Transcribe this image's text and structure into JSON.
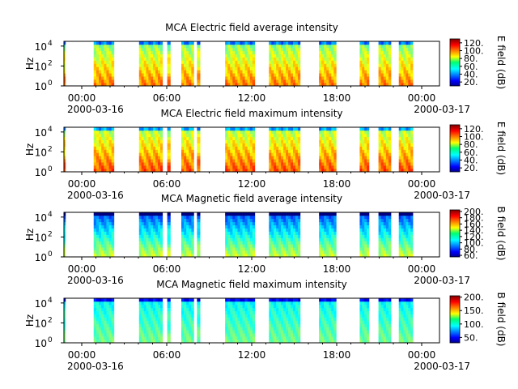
{
  "chart_data": [
    {
      "type": "heatmap",
      "title": "MCA  Electric field average intensity",
      "ylabel": "Hz",
      "x_ticks": [
        "00:00",
        "06:00",
        "12:00",
        "18:00",
        "00:00"
      ],
      "x_dates": [
        "2000-03-16",
        "2000-03-17"
      ],
      "y_ticks": [
        {
          "base": "10",
          "exp": "0"
        },
        {
          "base": "10",
          "exp": "2"
        },
        {
          "base": "10",
          "exp": "4"
        }
      ],
      "yscale": "log",
      "ylim": [
        1,
        30000
      ],
      "xlim": [
        "2000-03-16 00:00",
        "2000-03-17 00:00"
      ],
      "colorbar": {
        "label": "E field (dB)",
        "ticks": [
          "20.",
          "40.",
          "60.",
          "80.",
          "100.",
          "120."
        ],
        "range": [
          10,
          130
        ]
      },
      "data_windows_hours": [
        [
          0,
          0.1
        ],
        [
          1.9,
          3.2
        ],
        [
          4.8,
          6.3
        ],
        [
          6.6,
          6.8
        ],
        [
          7.5,
          8.3
        ],
        [
          8.5,
          8.7
        ],
        [
          10.3,
          12.2
        ],
        [
          13.1,
          15.1
        ],
        [
          16.3,
          17.4
        ],
        [
          18.9,
          19.5
        ],
        [
          20.1,
          20.9
        ],
        [
          21.4,
          22.3
        ]
      ],
      "low_band_intensity": 100,
      "high_band_intensity": 70
    },
    {
      "type": "heatmap",
      "title": "MCA  Electric field maximum intensity",
      "ylabel": "Hz",
      "x_ticks": [
        "00:00",
        "06:00",
        "12:00",
        "18:00",
        "00:00"
      ],
      "x_dates": [
        "2000-03-16",
        "2000-03-17"
      ],
      "y_ticks": [
        {
          "base": "10",
          "exp": "0"
        },
        {
          "base": "10",
          "exp": "2"
        },
        {
          "base": "10",
          "exp": "4"
        }
      ],
      "yscale": "log",
      "ylim": [
        1,
        30000
      ],
      "xlim": [
        "2000-03-16 00:00",
        "2000-03-17 00:00"
      ],
      "colorbar": {
        "label": "E field (dB)",
        "ticks": [
          "20.",
          "40.",
          "60.",
          "80.",
          "100.",
          "120."
        ],
        "range": [
          10,
          130
        ]
      },
      "data_windows_hours": [
        [
          0,
          0.1
        ],
        [
          1.9,
          3.2
        ],
        [
          4.8,
          6.3
        ],
        [
          6.6,
          6.8
        ],
        [
          7.5,
          8.3
        ],
        [
          8.5,
          8.7
        ],
        [
          10.3,
          12.2
        ],
        [
          13.1,
          15.1
        ],
        [
          16.3,
          17.4
        ],
        [
          18.9,
          19.5
        ],
        [
          20.1,
          20.9
        ],
        [
          21.4,
          22.3
        ]
      ],
      "low_band_intensity": 105,
      "high_band_intensity": 75
    },
    {
      "type": "heatmap",
      "title": "MCA  Magnetic field average intensity",
      "ylabel": "Hz",
      "x_ticks": [
        "00:00",
        "06:00",
        "12:00",
        "18:00",
        "00:00"
      ],
      "x_dates": [
        "2000-03-16",
        "2000-03-17"
      ],
      "y_ticks": [
        {
          "base": "10",
          "exp": "0"
        },
        {
          "base": "10",
          "exp": "2"
        },
        {
          "base": "10",
          "exp": "4"
        }
      ],
      "yscale": "log",
      "ylim": [
        1,
        30000
      ],
      "xlim": [
        "2000-03-16 00:00",
        "2000-03-17 00:00"
      ],
      "colorbar": {
        "label": "B field (dB)",
        "ticks": [
          "60.",
          "80.",
          "100.",
          "120.",
          "140.",
          "160.",
          "180.",
          "200."
        ],
        "range": [
          55,
          205
        ]
      },
      "data_windows_hours": [
        [
          0,
          0.1
        ],
        [
          1.9,
          3.2
        ],
        [
          4.8,
          6.3
        ],
        [
          6.6,
          6.8
        ],
        [
          7.5,
          8.3
        ],
        [
          8.5,
          8.7
        ],
        [
          10.3,
          12.2
        ],
        [
          13.1,
          15.1
        ],
        [
          16.3,
          17.4
        ],
        [
          18.9,
          19.5
        ],
        [
          20.1,
          20.9
        ],
        [
          21.4,
          22.3
        ]
      ],
      "low_band_intensity": 140,
      "high_band_intensity": 85
    },
    {
      "type": "heatmap",
      "title": "MCA  Magnetic field maximum intensity",
      "ylabel": "Hz",
      "x_ticks": [
        "00:00",
        "06:00",
        "12:00",
        "18:00",
        "00:00"
      ],
      "x_dates": [
        "2000-03-16",
        "2000-03-17"
      ],
      "y_ticks": [
        {
          "base": "10",
          "exp": "0"
        },
        {
          "base": "10",
          "exp": "2"
        },
        {
          "base": "10",
          "exp": "4"
        }
      ],
      "yscale": "log",
      "ylim": [
        1,
        30000
      ],
      "xlim": [
        "2000-03-16 00:00",
        "2000-03-17 00:00"
      ],
      "colorbar": {
        "label": "B field (dB)",
        "ticks": [
          "50.",
          "100.",
          "150.",
          "200."
        ],
        "range": [
          30,
          205
        ]
      },
      "data_windows_hours": [
        [
          0,
          0.1
        ],
        [
          1.9,
          3.2
        ],
        [
          4.8,
          6.3
        ],
        [
          6.6,
          6.8
        ],
        [
          7.5,
          8.3
        ],
        [
          8.5,
          8.7
        ],
        [
          10.3,
          12.2
        ],
        [
          13.1,
          15.1
        ],
        [
          16.3,
          17.4
        ],
        [
          18.9,
          19.5
        ],
        [
          20.1,
          20.9
        ],
        [
          21.4,
          22.3
        ]
      ],
      "low_band_intensity": 115,
      "high_band_intensity": 95
    }
  ]
}
